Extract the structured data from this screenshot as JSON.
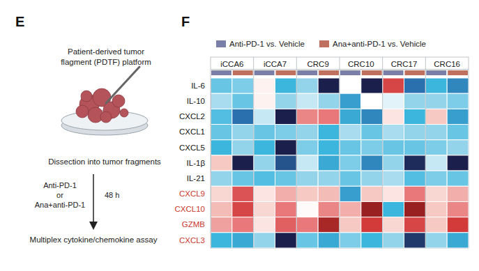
{
  "chart_data": {
    "type": "heatmap",
    "title": "F",
    "categories": [
      "iCCA6",
      "iCCA7",
      "CRC9",
      "CRC10",
      "CRC17",
      "CRC16"
    ],
    "rows": [
      {
        "name": "IL-6",
        "color": "#111111"
      },
      {
        "name": "IL-10",
        "color": "#111111"
      },
      {
        "name": "CXCL2",
        "color": "#111111"
      },
      {
        "name": "CXCL1",
        "color": "#111111"
      },
      {
        "name": "CXCL5",
        "color": "#111111"
      },
      {
        "name": "IL-1β",
        "color": "#111111"
      },
      {
        "name": "IL-21",
        "color": "#111111"
      },
      {
        "name": "CXCL9",
        "color": "#c8372d"
      },
      {
        "name": "CXCL10",
        "color": "#c8372d"
      },
      {
        "name": "GZMB",
        "color": "#c8372d"
      },
      {
        "name": "CXCL3",
        "color": "#c8372d"
      }
    ],
    "zlim": [
      -1,
      1
    ],
    "legend": "top",
    "series": [
      {
        "name": "Anti-PD-1 vs. Vehicle",
        "color": "#7a7fa8",
        "values": [
          [
            -0.3,
            0.05,
            -0.2,
            0,
            0.7,
            -0.4
          ],
          [
            -0.15,
            0.05,
            -0.1,
            -0.5,
            -0.05,
            -0.2
          ],
          [
            -0.35,
            -0.1,
            0.45,
            -0.45,
            0.1,
            0.2
          ],
          [
            -0.3,
            -0.3,
            -0.2,
            -0.15,
            -0.15,
            -0.2
          ],
          [
            -0.4,
            -0.4,
            -0.25,
            -0.3,
            -0.3,
            -0.25
          ],
          [
            0.2,
            -0.2,
            -0.1,
            -0.25,
            -0.2,
            -0.1
          ],
          [
            -0.2,
            -0.35,
            -0.2,
            -0.3,
            -0.15,
            -0.25
          ],
          [
            0.15,
            0.1,
            0.2,
            -0.5,
            0.1,
            0.15
          ],
          [
            0.25,
            0.15,
            0.02,
            0.3,
            -0.4,
            0.2
          ],
          [
            0.35,
            0.1,
            0.5,
            0.2,
            0.15,
            0.2
          ],
          [
            -0.4,
            -0.2,
            -0.3,
            -0.25,
            -0.2,
            -0.2
          ]
        ]
      },
      {
        "name": "Ana+anti-PD-1 vs. Vehicle",
        "color": "#c0705f",
        "values": [
          [
            -0.25,
            -0.4,
            -1,
            -1,
            -0.7,
            -0.6
          ],
          [
            -0.3,
            -0.2,
            -0.2,
            0,
            -0.2,
            -0.25
          ],
          [
            -0.7,
            -1,
            0.5,
            -0.6,
            -0.4,
            -0.5
          ],
          [
            -0.2,
            -0.25,
            -0.4,
            -0.3,
            -0.2,
            -0.3
          ],
          [
            -0.2,
            -1,
            -0.4,
            -0.25,
            -0.3,
            -0.2
          ],
          [
            -1,
            -0.8,
            -0.45,
            -0.6,
            -0.95,
            -1
          ],
          [
            -0.3,
            -0.3,
            -0.2,
            -0.2,
            -0.35,
            -0.3
          ],
          [
            0.65,
            0.3,
            0.25,
            0.2,
            0.5,
            0.3
          ],
          [
            0.7,
            0.5,
            0.45,
            0.95,
            0.95,
            0.45
          ],
          [
            0.5,
            0.6,
            0.9,
            0.75,
            0.7,
            0.75
          ],
          [
            -0.45,
            -1,
            -0.45,
            -0.4,
            -0.9,
            -0.45
          ]
        ]
      }
    ]
  },
  "diagram": {
    "panel_label": "E",
    "title_lines": [
      "Patient-derived tumor",
      "flagment (PDTF) platform"
    ],
    "step": "Dissection into tumor fragments",
    "treatments": [
      "Anti-PD-1",
      "or",
      "Ana+anti-PD-1"
    ],
    "duration": "48 h",
    "readout": "Multiplex cytokine/chemokine assay"
  }
}
